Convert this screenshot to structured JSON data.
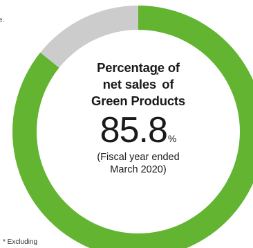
{
  "chart_data": {
    "type": "pie",
    "subtype": "donut",
    "categories": [
      "Green Products",
      "Other"
    ],
    "values": [
      85.8,
      14.2
    ],
    "colors": {
      "Green Products": "#62b431",
      "Other": "#cccccc"
    },
    "title_parts": {
      "line1": "Percentage of",
      "line2_pre": "net sales",
      "line2_sup": "*",
      "line2_post": " of",
      "line3": "Green Products"
    },
    "value_label": "85.8",
    "unit": "%",
    "period_line1": "(Fiscal year ended",
    "period_line2": "March 2020)"
  },
  "cropped_text": {
    "top_left": "e.",
    "footnote": "* Excluding"
  }
}
